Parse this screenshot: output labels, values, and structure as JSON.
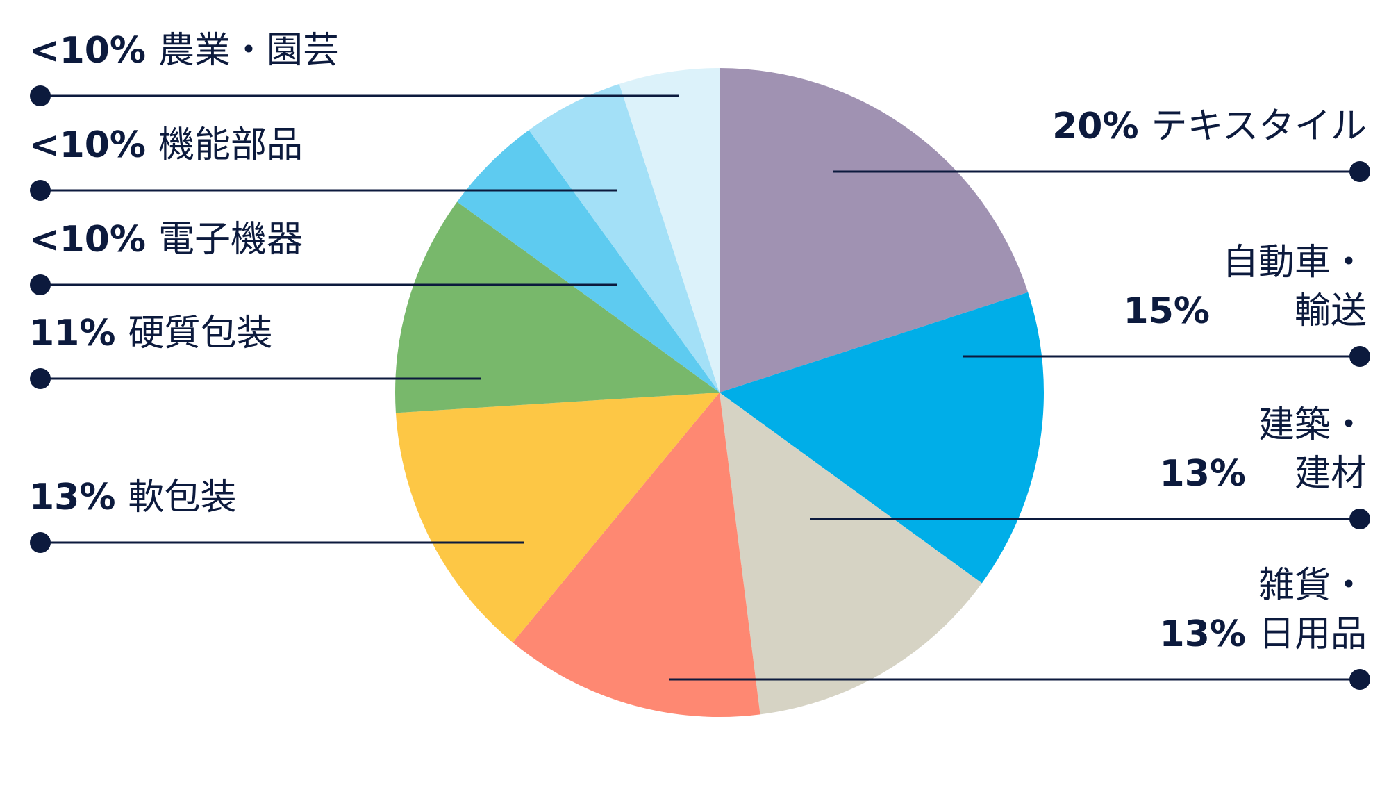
{
  "chart_data": {
    "type": "pie",
    "categories": [
      "テキスタイル",
      "自動車・\n輸送",
      "建築・\n建材",
      "雑貨・\n日用品",
      "軟包装",
      "硬質包装",
      "電子機器",
      "機能部品",
      "農業・園芸"
    ],
    "values": [
      20,
      15,
      13,
      13,
      13,
      11,
      5,
      5,
      5
    ],
    "value_labels": [
      "20%",
      "15%",
      "13%",
      "13%",
      "13%",
      "11%",
      "<10%",
      "<10%",
      "<10%"
    ],
    "colors": [
      "#a092b2",
      "#00aee8",
      "#d6d3c4",
      "#fe8872",
      "#fdc745",
      "#78b86b",
      "#5ecbf0",
      "#a3e0f7",
      "#dcf2fa"
    ]
  }
}
